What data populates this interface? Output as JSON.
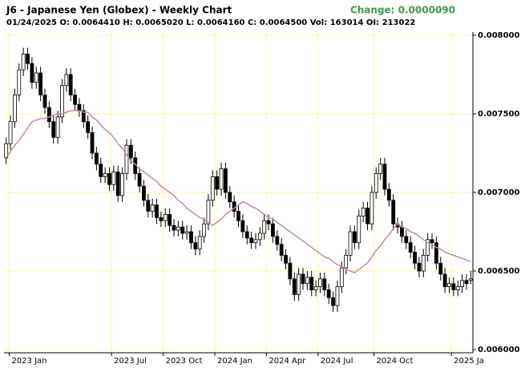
{
  "chart_data": {
    "type": "candlestick",
    "title": "J6 - Japanese Yen (Globex) - Weekly Chart",
    "change": "Change: 0.0000090",
    "subtitle": "01/24/2025 O: 0.0064410 H: 0.0065020 L: 0.0064160 C: 0.0064500 Vol: 163014 OI: 213022",
    "open": [
      0.00722,
      0.00731,
      0.00745,
      0.00762,
      0.00778,
      0.00788,
      0.00782,
      0.0077,
      0.00776,
      0.00762,
      0.00754,
      0.00745,
      0.00735,
      0.00748,
      0.00768,
      0.00775,
      0.00762,
      0.00756,
      0.00752,
      0.00745,
      0.00738,
      0.00725,
      0.00718,
      0.0071,
      0.00712,
      0.00705,
      0.00713,
      0.00698,
      0.00712,
      0.0073,
      0.00722,
      0.00712,
      0.00704,
      0.00695,
      0.00688,
      0.00692,
      0.00684,
      0.00682,
      0.00686,
      0.00679,
      0.00676,
      0.00678,
      0.00674,
      0.00675,
      0.00668,
      0.00664,
      0.00672,
      0.0068,
      0.00695,
      0.0071,
      0.00702,
      0.00715,
      0.007,
      0.00694,
      0.00688,
      0.00682,
      0.00675,
      0.00671,
      0.00668,
      0.0067,
      0.00674,
      0.00682,
      0.0068,
      0.00672,
      0.00667,
      0.0066,
      0.00655,
      0.00645,
      0.00635,
      0.00648,
      0.00642,
      0.00646,
      0.00638,
      0.0064,
      0.00645,
      0.00638,
      0.00633,
      0.00628,
      0.0064,
      0.00652,
      0.0066,
      0.00675,
      0.00668,
      0.00685,
      0.0069,
      0.0068,
      0.007,
      0.00712,
      0.00718,
      0.00702,
      0.00695,
      0.0068,
      0.00678,
      0.00672,
      0.00668,
      0.00662,
      0.00655,
      0.0065,
      0.0066,
      0.0067,
      0.00668,
      0.00655,
      0.00648,
      0.0064,
      0.00642,
      0.00638,
      0.0064,
      0.00644,
      0.006441
    ],
    "high": [
      0.00735,
      0.00749,
      0.00766,
      0.00782,
      0.00792,
      0.00792,
      0.00786,
      0.0078,
      0.0078,
      0.00766,
      0.00758,
      0.00749,
      0.00752,
      0.00772,
      0.00779,
      0.00779,
      0.00766,
      0.0076,
      0.00756,
      0.00749,
      0.00742,
      0.00729,
      0.00722,
      0.00716,
      0.00716,
      0.00717,
      0.00717,
      0.00716,
      0.00734,
      0.00734,
      0.00726,
      0.00716,
      0.00708,
      0.00699,
      0.00696,
      0.00696,
      0.00688,
      0.0069,
      0.0069,
      0.00683,
      0.00682,
      0.00682,
      0.00679,
      0.00679,
      0.00672,
      0.00676,
      0.00684,
      0.00699,
      0.00714,
      0.00714,
      0.00719,
      0.00719,
      0.00704,
      0.00698,
      0.00692,
      0.00686,
      0.00679,
      0.00675,
      0.00674,
      0.00678,
      0.00686,
      0.00686,
      0.00684,
      0.00676,
      0.00671,
      0.00664,
      0.00659,
      0.00649,
      0.00652,
      0.00652,
      0.0065,
      0.0065,
      0.00644,
      0.00649,
      0.00649,
      0.00642,
      0.00637,
      0.00644,
      0.00656,
      0.00664,
      0.00679,
      0.00679,
      0.00689,
      0.00694,
      0.00694,
      0.00704,
      0.00716,
      0.00722,
      0.00722,
      0.00706,
      0.00699,
      0.00684,
      0.00682,
      0.00676,
      0.00672,
      0.00666,
      0.00659,
      0.00664,
      0.00674,
      0.00674,
      0.00672,
      0.00659,
      0.00652,
      0.00646,
      0.00646,
      0.00644,
      0.00648,
      0.00648,
      0.006502
    ],
    "low": [
      0.00718,
      0.00727,
      0.00741,
      0.00758,
      0.00774,
      0.00778,
      0.00766,
      0.00766,
      0.00758,
      0.0075,
      0.00741,
      0.00731,
      0.00731,
      0.00744,
      0.00764,
      0.00758,
      0.00752,
      0.00748,
      0.00741,
      0.00734,
      0.00721,
      0.00714,
      0.00706,
      0.00706,
      0.00701,
      0.00701,
      0.00694,
      0.00694,
      0.00708,
      0.00718,
      0.00708,
      0.007,
      0.00691,
      0.00684,
      0.00684,
      0.0068,
      0.00678,
      0.00678,
      0.00675,
      0.00672,
      0.00672,
      0.0067,
      0.0067,
      0.00664,
      0.0066,
      0.0066,
      0.00668,
      0.00676,
      0.00691,
      0.00698,
      0.00698,
      0.00696,
      0.0069,
      0.00684,
      0.00678,
      0.00671,
      0.00667,
      0.00664,
      0.00664,
      0.00666,
      0.0067,
      0.00676,
      0.00668,
      0.00663,
      0.00656,
      0.00651,
      0.00641,
      0.00631,
      0.00631,
      0.00638,
      0.00638,
      0.00634,
      0.00634,
      0.00636,
      0.00634,
      0.00629,
      0.00624,
      0.00624,
      0.00636,
      0.00648,
      0.00656,
      0.00664,
      0.00664,
      0.00681,
      0.00676,
      0.00676,
      0.00696,
      0.00708,
      0.00698,
      0.00691,
      0.00676,
      0.00674,
      0.00668,
      0.00664,
      0.00658,
      0.00651,
      0.00646,
      0.00646,
      0.00656,
      0.00664,
      0.00651,
      0.00644,
      0.00636,
      0.00636,
      0.00634,
      0.00634,
      0.00636,
      0.00638,
      0.006416
    ],
    "close": [
      0.00731,
      0.00745,
      0.00762,
      0.00778,
      0.00788,
      0.00782,
      0.0077,
      0.00776,
      0.00762,
      0.00754,
      0.00745,
      0.00735,
      0.00748,
      0.00768,
      0.00775,
      0.00762,
      0.00756,
      0.00752,
      0.00745,
      0.00738,
      0.00725,
      0.00718,
      0.0071,
      0.00712,
      0.00705,
      0.00713,
      0.00698,
      0.00712,
      0.0073,
      0.00722,
      0.00712,
      0.00704,
      0.00695,
      0.00688,
      0.00692,
      0.00684,
      0.00682,
      0.00686,
      0.00679,
      0.00676,
      0.00678,
      0.00674,
      0.00675,
      0.00668,
      0.00664,
      0.00672,
      0.0068,
      0.00695,
      0.0071,
      0.00702,
      0.00715,
      0.007,
      0.00694,
      0.00688,
      0.00682,
      0.00675,
      0.00671,
      0.00668,
      0.0067,
      0.00674,
      0.00682,
      0.0068,
      0.00672,
      0.00667,
      0.0066,
      0.00655,
      0.00645,
      0.00635,
      0.00648,
      0.00642,
      0.00646,
      0.00638,
      0.0064,
      0.00645,
      0.00638,
      0.00633,
      0.00628,
      0.0064,
      0.00652,
      0.0066,
      0.00675,
      0.00668,
      0.00685,
      0.0069,
      0.0068,
      0.007,
      0.00712,
      0.00718,
      0.00702,
      0.00695,
      0.0068,
      0.00678,
      0.00672,
      0.00668,
      0.00662,
      0.00655,
      0.0065,
      0.0066,
      0.0067,
      0.00668,
      0.00655,
      0.00648,
      0.0064,
      0.00642,
      0.00638,
      0.0064,
      0.00644,
      0.00642,
      0.00645
    ],
    "moving_average": {
      "color": "#c08aa8",
      "values": [
        0.00722,
        0.00726,
        0.0073,
        0.00733,
        0.00737,
        0.00741,
        0.00745,
        0.00746,
        0.00747,
        0.00747,
        0.00748,
        0.00749,
        0.0075,
        0.0075,
        0.00751,
        0.00752,
        0.00752,
        0.00752,
        0.00751,
        0.00751,
        0.00748,
        0.00746,
        0.00743,
        0.0074,
        0.00738,
        0.00735,
        0.00731,
        0.00728,
        0.00724,
        0.0072,
        0.00718,
        0.00715,
        0.00713,
        0.00711,
        0.00709,
        0.00707,
        0.00704,
        0.00702,
        0.007,
        0.00698,
        0.00695,
        0.00693,
        0.0069,
        0.00688,
        0.00686,
        0.00684,
        0.00683,
        0.00681,
        0.00679,
        0.00681,
        0.00683,
        0.00686,
        0.00688,
        0.0069,
        0.00692,
        0.00694,
        0.00693,
        0.00691,
        0.0069,
        0.00688,
        0.00686,
        0.00684,
        0.00683,
        0.00681,
        0.00679,
        0.00677,
        0.00675,
        0.00673,
        0.00671,
        0.00669,
        0.00667,
        0.00665,
        0.00663,
        0.00661,
        0.00659,
        0.00658,
        0.00656,
        0.00654,
        0.00653,
        0.00651,
        0.0065,
        0.00649,
        0.00651,
        0.00653,
        0.00655,
        0.00659,
        0.00663,
        0.00666,
        0.0067,
        0.00673,
        0.00677,
        0.0068,
        0.00678,
        0.00677,
        0.00675,
        0.00674,
        0.00672,
        0.0067,
        0.00668,
        0.00667,
        0.00665,
        0.00664,
        0.00662,
        0.00661,
        0.0066,
        0.00659,
        0.00658,
        0.00657,
        0.00656
      ]
    },
    "ylim": [
      0.00598,
      0.00802
    ],
    "yticks": [
      {
        "value": 0.006,
        "label": "0.006000"
      },
      {
        "value": 0.0065,
        "label": "0.006500"
      },
      {
        "value": 0.007,
        "label": "0.007000"
      },
      {
        "value": 0.0075,
        "label": "0.007500"
      },
      {
        "value": 0.008,
        "label": "0.008000"
      }
    ],
    "xticks": [
      {
        "value": 0.7,
        "label": "2023 Jan"
      },
      {
        "value": 24.5,
        "label": "2023 Jul"
      },
      {
        "value": 36.5,
        "label": "2023 Oct"
      },
      {
        "value": 48.5,
        "label": "2024 Jan"
      },
      {
        "value": 60.5,
        "label": "2024 Apr"
      },
      {
        "value": 72.5,
        "label": "2024 Jul"
      },
      {
        "value": 85.5,
        "label": "2024 Oct"
      },
      {
        "value": 103.5,
        "label": "2025 Ja"
      }
    ],
    "grid": true,
    "grid_color": "#fbf5a8",
    "up_color": "#ffffff",
    "down_color": "#000000",
    "title_color": "#000000",
    "change_color": "#3a9a4e"
  }
}
